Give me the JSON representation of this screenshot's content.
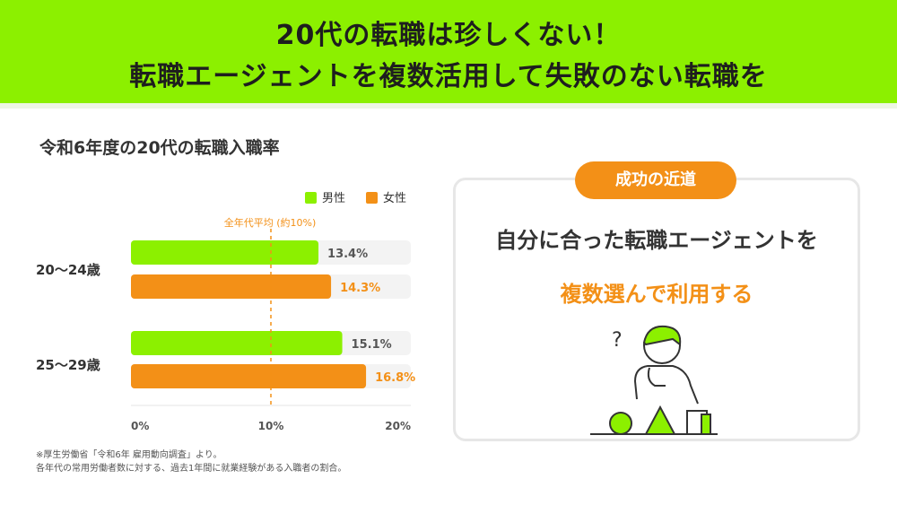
{
  "header": {
    "line1": "20代の転職は珍しくない！",
    "line2": "転職エージェントを複数活用して失敗のない転職を"
  },
  "chart_title": "令和6年度の20代の転職入職率",
  "legend": {
    "male": "男性",
    "female": "女性"
  },
  "average_label": "全年代平均 (約10%)",
  "footnotes": [
    "※厚生労働省「令和6年 雇用動向調査」より。",
    "各年代の常用労働者数に対する、過去1年間に就業経験がある入職者の割合。"
  ],
  "card": {
    "badge": "成功の近道",
    "line1": "自分に合った転職エージェントを",
    "line2": "複数選んで利用する"
  },
  "colors": {
    "green": "#8cf000",
    "orange": "#f39017",
    "track": "#f3f3f3"
  },
  "chart_data": {
    "type": "bar",
    "orientation": "horizontal",
    "categories": [
      "20〜24歳",
      "25〜29歳"
    ],
    "series": [
      {
        "name": "男性",
        "values": [
          13.4,
          15.1
        ],
        "labels": [
          "13.4%",
          "15.1%"
        ],
        "color": "#8cf000"
      },
      {
        "name": "女性",
        "values": [
          14.3,
          16.8
        ],
        "labels": [
          "14.3%",
          "16.8%"
        ],
        "color": "#f39017"
      }
    ],
    "x_ticks": [
      "0%",
      "10%",
      "20%"
    ],
    "xlim": [
      0,
      20
    ],
    "reference_line": {
      "value": 10
    },
    "legend_position": "top-right"
  }
}
